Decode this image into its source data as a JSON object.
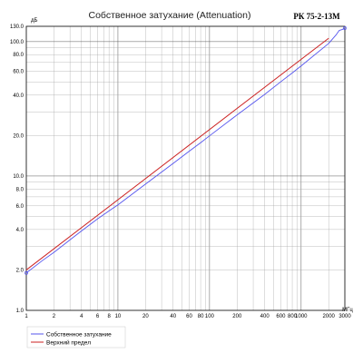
{
  "chart_data": {
    "type": "line",
    "title": "Собственное затухание (Attenuation)",
    "model": "РК 75-2-13М",
    "x_unit": "МГц",
    "y_unit": "дБ",
    "x_scale": "log",
    "y_scale": "log",
    "xlim": [
      1,
      3000
    ],
    "ylim": [
      1.0,
      130.0
    ],
    "grid": true,
    "x_ticks": [
      1,
      2,
      4,
      6,
      8,
      10,
      20,
      40,
      60,
      80,
      100,
      200,
      400,
      600,
      800,
      1000,
      2000,
      3000
    ],
    "x_tick_labels": [
      "1",
      "2",
      "4",
      "6",
      "8",
      "10",
      "20",
      "40",
      "60",
      "80",
      "100",
      "200",
      "400",
      "600",
      "800",
      "1000",
      "2000",
      "3000"
    ],
    "y_ticks": [
      1.0,
      2.0,
      4.0,
      6.0,
      8.0,
      10.0,
      20.0,
      40.0,
      60.0,
      80.0,
      100.0,
      130.0
    ],
    "y_tick_labels": [
      "1.0",
      "2.0",
      "4.0",
      "6.0",
      "8.0",
      "10.0",
      "20.0",
      "40.0",
      "60.0",
      "80.0",
      "100.0",
      "130.0"
    ],
    "legend_position": "bottom-left",
    "series": [
      {
        "name": "Собственное затухание",
        "color": "#5555ee",
        "x": [
          1,
          1.5,
          2,
          3,
          4,
          6,
          8,
          10,
          20,
          40,
          60,
          80,
          100,
          200,
          400,
          600,
          800,
          1000,
          2000,
          2400,
          2600,
          2800,
          3000
        ],
        "y": [
          1.9,
          2.35,
          2.7,
          3.35,
          3.9,
          4.8,
          5.5,
          6.1,
          8.7,
          12.4,
          15.3,
          17.7,
          19.9,
          28.5,
          40.5,
          50.3,
          58.5,
          66,
          97,
          112,
          121,
          123,
          126
        ]
      },
      {
        "name": "Верхний предел",
        "color": "#cc2222",
        "x": [
          1,
          2000
        ],
        "y": [
          2.0,
          106
        ]
      }
    ]
  }
}
